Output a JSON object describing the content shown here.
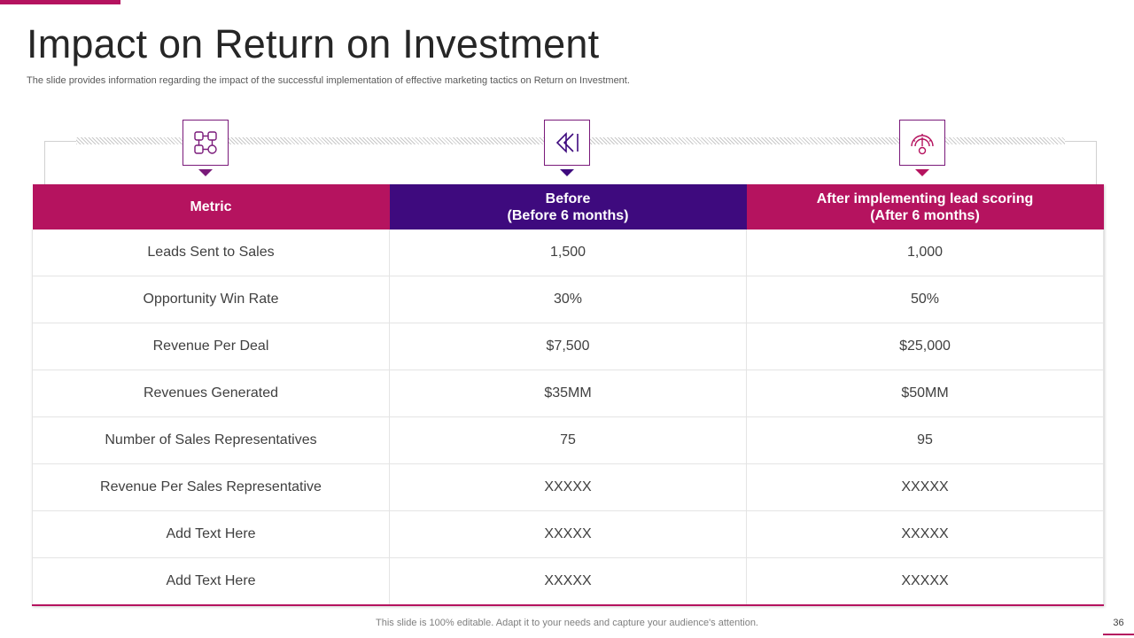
{
  "title": "Impact on Return on Investment",
  "subtitle": "The slide provides information regarding the impact of the successful implementation of effective  marketing tactics on Return on Investment.",
  "icons": [
    {
      "name": "workflow-icon",
      "color": "#7a1a7a"
    },
    {
      "name": "rewind-icon",
      "color": "#3e0a7e"
    },
    {
      "name": "speedometer-icon",
      "color": "#b5135f"
    }
  ],
  "colors": {
    "accent_magenta": "#b5135f",
    "accent_purple": "#3e0a7e"
  },
  "table": {
    "headers": {
      "metric": "Metric",
      "before_line1": "Before",
      "before_line2": "(Before 6 months)",
      "after_line1": "After implementing lead scoring",
      "after_line2": "(After 6 months)"
    },
    "rows": [
      {
        "metric": "Leads Sent to Sales",
        "before": "1,500",
        "after": "1,000"
      },
      {
        "metric": "Opportunity  Win Rate",
        "before": "30%",
        "after": "50%"
      },
      {
        "metric": "Revenue  Per Deal",
        "before": "$7,500",
        "after": "$25,000"
      },
      {
        "metric": "Revenues  Generated",
        "before": "$35MM",
        "after": "$50MM"
      },
      {
        "metric": "Number  of Sales Representatives",
        "before": "75",
        "after": "95"
      },
      {
        "metric": "Revenue  Per Sales Representative",
        "before": "XXXXX",
        "after": "XXXXX"
      },
      {
        "metric": "Add Text Here",
        "before": "XXXXX",
        "after": "XXXXX"
      },
      {
        "metric": "Add Text Here",
        "before": "XXXXX",
        "after": "XXXXX"
      }
    ]
  },
  "footer": "This slide is 100% editable. Adapt it to your needs and capture your audience's attention.",
  "page_number": "36"
}
